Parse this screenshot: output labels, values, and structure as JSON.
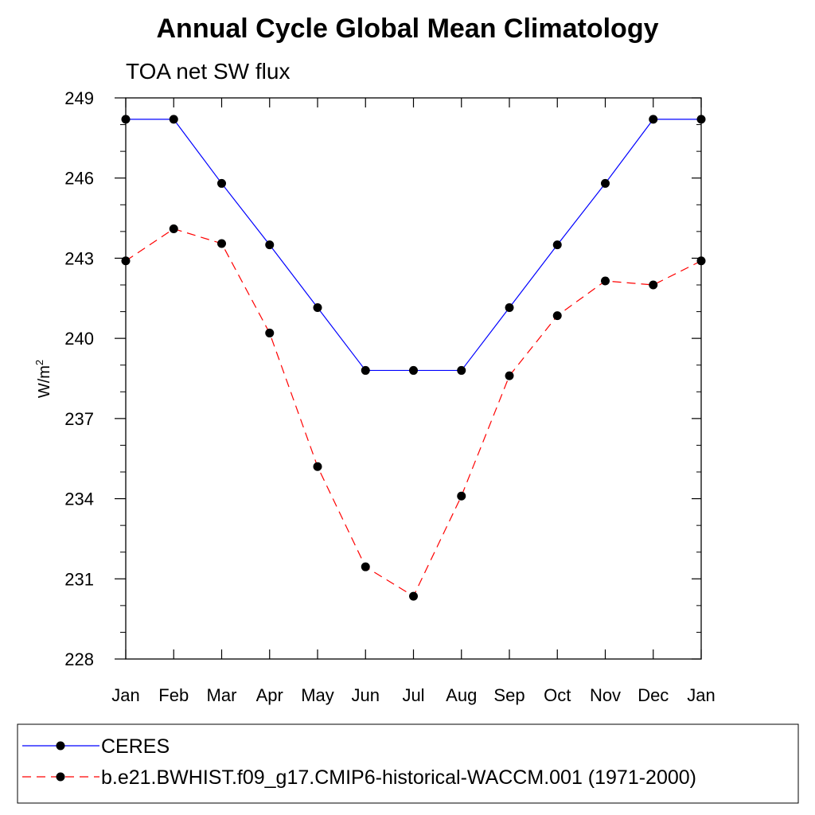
{
  "chart_data": {
    "type": "line",
    "title": "Annual Cycle Global Mean Climatology",
    "subtitle": "TOA net SW flux",
    "ylabel_base": "W/m",
    "ylabel_sup": "2",
    "xlabel": "",
    "categories": [
      "Jan",
      "Feb",
      "Mar",
      "Apr",
      "May",
      "Jun",
      "Jul",
      "Aug",
      "Sep",
      "Oct",
      "Nov",
      "Dec",
      "Jan"
    ],
    "yticks": [
      228,
      231,
      234,
      237,
      240,
      243,
      246,
      249
    ],
    "ylim": [
      228,
      249
    ],
    "grid": false,
    "legend_position": "bottom",
    "series": [
      {
        "name": "CERES",
        "color": "#0000ff",
        "dash": "solid",
        "marker": "filled-circle",
        "values": [
          248.2,
          248.2,
          245.8,
          243.5,
          241.15,
          238.8,
          238.8,
          238.8,
          241.15,
          243.5,
          245.8,
          248.2,
          248.2
        ]
      },
      {
        "name": "b.e21.BWHIST.f09_g17.CMIP6-historical-WACCM.001 (1971-2000)",
        "color": "#ff0000",
        "dash": "dashed",
        "marker": "filled-circle",
        "values": [
          242.9,
          244.1,
          243.55,
          240.2,
          235.2,
          231.45,
          230.35,
          234.1,
          238.6,
          240.85,
          242.15,
          242.0,
          242.9
        ]
      }
    ]
  }
}
